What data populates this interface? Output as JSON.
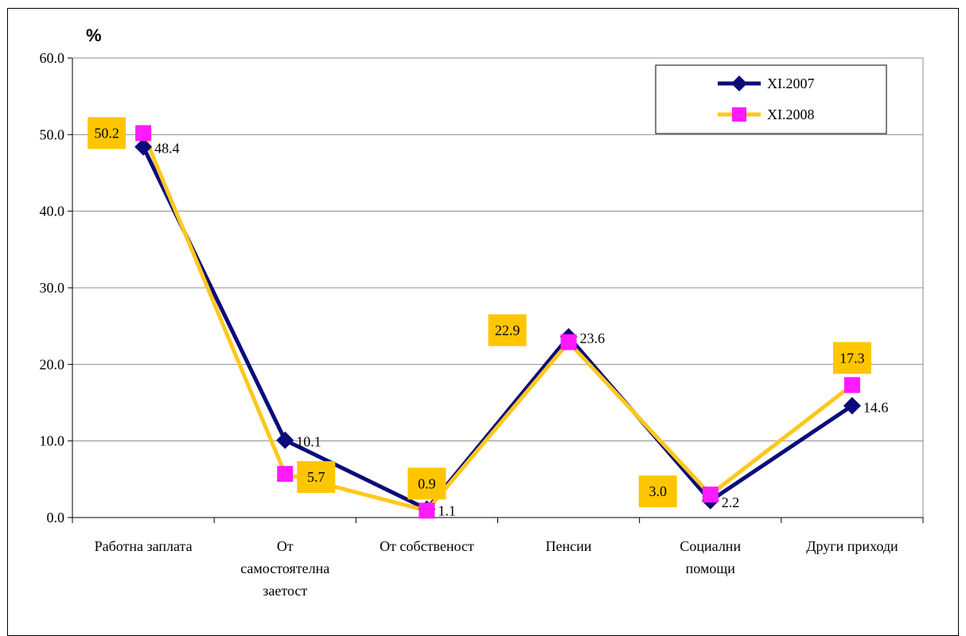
{
  "chart_data": {
    "type": "line",
    "unit_label": "%",
    "categories": [
      [
        "Работна заплата"
      ],
      [
        "От",
        "самостоятелна",
        "заетост"
      ],
      [
        "От собственост"
      ],
      [
        "Пенсии"
      ],
      [
        "Социални",
        "помощи"
      ],
      [
        "Други приходи"
      ]
    ],
    "series": [
      {
        "name": "XI.2007",
        "values": [
          48.4,
          10.1,
          1.1,
          23.6,
          2.2,
          14.6
        ],
        "labels": [
          "48.4",
          "10.1",
          "1.1",
          "23.6",
          "2.2",
          "14.6"
        ],
        "line_color": "#0b0b7a",
        "marker": "diamond",
        "marker_color": "#0b0b7a"
      },
      {
        "name": "XI.2008",
        "values": [
          50.2,
          5.7,
          0.9,
          22.9,
          3.0,
          17.3
        ],
        "labels": [
          "50.2",
          "5.7",
          "0.9",
          "22.9",
          "3.0",
          "17.3"
        ],
        "line_color": "#ffc81e",
        "marker": "square",
        "marker_color": "#ff1aff",
        "label_box_color": "#ffc600"
      }
    ],
    "y_ticks": [
      "0.0",
      "10.0",
      "20.0",
      "30.0",
      "40.0",
      "50.0",
      "60.0"
    ],
    "ylim": [
      0,
      60
    ],
    "grid": true,
    "legend_position": "top-right"
  }
}
